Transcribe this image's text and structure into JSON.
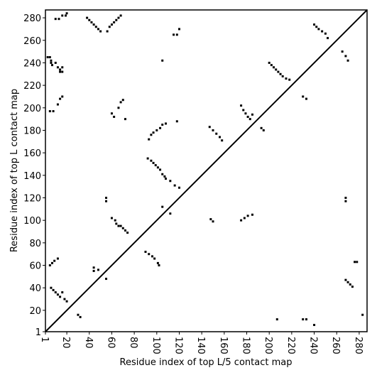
{
  "chart_data": {
    "type": "scatter",
    "xlabel": "Residue index of top L/5 contact map",
    "ylabel": "Residue index of top L contact map",
    "xlim": [
      1,
      287
    ],
    "ylim": [
      1,
      287
    ],
    "xticks": [
      1,
      20,
      40,
      60,
      80,
      100,
      120,
      140,
      160,
      180,
      200,
      220,
      240,
      260,
      280
    ],
    "yticks": [
      1,
      20,
      40,
      60,
      80,
      100,
      120,
      140,
      160,
      180,
      200,
      220,
      240,
      260,
      280
    ],
    "color": "#000000",
    "x": [
      3,
      5,
      6,
      6,
      7,
      10,
      12,
      14,
      14,
      16,
      16,
      10,
      13,
      16,
      19,
      20,
      38,
      40,
      42,
      44,
      46,
      48,
      50,
      56,
      58,
      60,
      62,
      64,
      66,
      68,
      115,
      118,
      120,
      5,
      8,
      12,
      14,
      16,
      60,
      62,
      66,
      68,
      70,
      72,
      93,
      95,
      97,
      100,
      103,
      105,
      108,
      118,
      105,
      92,
      95,
      97,
      99,
      101,
      103,
      105,
      107,
      108,
      112,
      116,
      120,
      55,
      55,
      60,
      63,
      64,
      66,
      68,
      70,
      72,
      74,
      105,
      112,
      90,
      93,
      96,
      98,
      101,
      102,
      5,
      7,
      9,
      12,
      6,
      8,
      10,
      12,
      14,
      16,
      18,
      20,
      44,
      44,
      48,
      30,
      32,
      55,
      147,
      150,
      153,
      156,
      158,
      148,
      150,
      175,
      177,
      179,
      181,
      183,
      185,
      175,
      178,
      181,
      185,
      193,
      195,
      200,
      202,
      204,
      206,
      208,
      210,
      212,
      215,
      218,
      230,
      233,
      240,
      242,
      244,
      247,
      250,
      252,
      265,
      268,
      270,
      268,
      268,
      268,
      270,
      272,
      274,
      276,
      278,
      207,
      230,
      233,
      240,
      283
    ],
    "values": [
      245,
      245,
      242,
      240,
      238,
      240,
      236,
      234,
      232,
      236,
      232,
      279,
      279,
      282,
      282,
      284,
      280,
      278,
      276,
      274,
      272,
      270,
      268,
      268,
      272,
      274,
      276,
      278,
      280,
      282,
      265,
      265,
      270,
      197,
      197,
      203,
      208,
      210,
      195,
      192,
      200,
      205,
      207,
      190,
      172,
      176,
      178,
      180,
      182,
      185,
      186,
      188,
      242,
      155,
      153,
      151,
      149,
      147,
      145,
      141,
      139,
      137,
      135,
      131,
      129,
      120,
      117,
      102,
      100,
      97,
      95,
      95,
      93,
      91,
      89,
      112,
      106,
      72,
      70,
      68,
      66,
      62,
      60,
      60,
      62,
      64,
      66,
      40,
      38,
      36,
      34,
      32,
      36,
      30,
      28,
      58,
      55,
      56,
      16,
      14,
      48,
      183,
      180,
      177,
      174,
      171,
      101,
      99,
      202,
      198,
      195,
      192,
      190,
      194,
      100,
      102,
      104,
      105,
      182,
      180,
      240,
      238,
      236,
      234,
      232,
      230,
      228,
      226,
      225,
      210,
      208,
      274,
      272,
      270,
      268,
      266,
      262,
      250,
      246,
      242,
      120,
      117,
      47,
      45,
      43,
      41,
      63,
      63,
      12,
      12,
      12,
      7,
      16
    ]
  }
}
